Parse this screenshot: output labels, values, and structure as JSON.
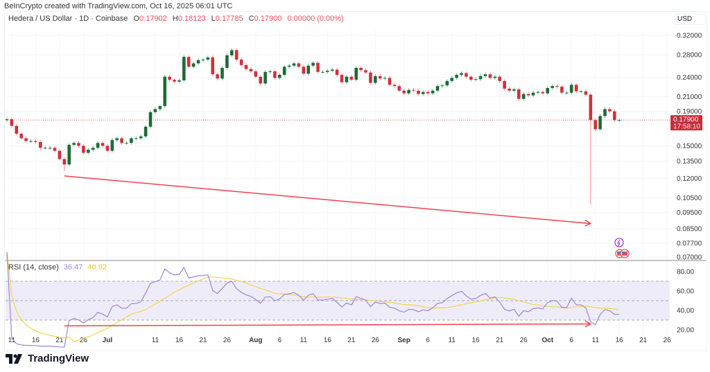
{
  "credit": "BeInCrypto created with TradingView.com, Oct 16, 2025 06:01 UTC",
  "header": {
    "symbol": "Hedera / US Dollar · 1D · Coinbase",
    "o_label": "O",
    "o": "0.17902",
    "h_label": "H",
    "h": "0.18123",
    "l_label": "L",
    "l": "0.17785",
    "c_label": "C",
    "c": "0.17900",
    "change": "0.00000 (0.00%)"
  },
  "currency": "USD",
  "rsi_legend": {
    "label": "RSI (14, close)",
    "rsi": "36.47",
    "ma": "40.92"
  },
  "price_tag": {
    "price": "0.17900",
    "countdown": "17:58:10"
  },
  "logo": "TradingView",
  "colors": {
    "up": "#1e6b34",
    "up_wick": "#4db89a",
    "down": "#d0313d",
    "down_wick": "#f08a93",
    "rsi": "#9b87d8",
    "rsi_ma": "#f5d547",
    "rsi_band": "#efecfa",
    "divergence": "#f0404f",
    "price_line": "#e8505b"
  },
  "chart_data": [
    {
      "type": "candlestick",
      "y_scale": "log",
      "ylim": [
        0.07,
        0.33
      ],
      "first_date": "2025-06-10",
      "open_first": 0.179,
      "closes": [
        0.18,
        0.172,
        0.163,
        0.158,
        0.155,
        0.155,
        0.154,
        0.148,
        0.148,
        0.148,
        0.145,
        0.137,
        0.132,
        0.151,
        0.153,
        0.15,
        0.143,
        0.146,
        0.148,
        0.153,
        0.15,
        0.145,
        0.156,
        0.158,
        0.153,
        0.153,
        0.158,
        0.158,
        0.16,
        0.171,
        0.189,
        0.193,
        0.197,
        0.241,
        0.236,
        0.233,
        0.235,
        0.276,
        0.258,
        0.264,
        0.27,
        0.271,
        0.275,
        0.245,
        0.238,
        0.256,
        0.279,
        0.289,
        0.271,
        0.261,
        0.254,
        0.25,
        0.241,
        0.23,
        0.249,
        0.25,
        0.239,
        0.244,
        0.258,
        0.26,
        0.264,
        0.258,
        0.246,
        0.26,
        0.265,
        0.249,
        0.249,
        0.251,
        0.253,
        0.244,
        0.232,
        0.241,
        0.236,
        0.256,
        0.252,
        0.248,
        0.231,
        0.242,
        0.238,
        0.239,
        0.228,
        0.226,
        0.219,
        0.215,
        0.22,
        0.219,
        0.214,
        0.217,
        0.215,
        0.219,
        0.226,
        0.227,
        0.234,
        0.239,
        0.244,
        0.247,
        0.241,
        0.236,
        0.237,
        0.242,
        0.245,
        0.239,
        0.241,
        0.234,
        0.222,
        0.219,
        0.221,
        0.207,
        0.214,
        0.212,
        0.216,
        0.217,
        0.215,
        0.223,
        0.226,
        0.225,
        0.216,
        0.216,
        0.228,
        0.218,
        0.218,
        0.213,
        0.179,
        0.168,
        0.184,
        0.193,
        0.19,
        0.179,
        0.179
      ],
      "notable_lows": [
        {
          "date": "2025-06-22",
          "low": 0.126
        },
        {
          "date": "2025-10-10",
          "low": 0.1
        }
      ],
      "last_price": 0.179,
      "y_ticks": [
        "0.32000",
        "0.28000",
        "0.24000",
        "0.21000",
        "0.19000",
        "0.15000",
        "0.13500",
        "0.12000",
        "0.10500",
        "0.09500",
        "0.08500",
        "0.07700",
        "0.07000"
      ],
      "divergence_line": {
        "from": {
          "date": "2025-06-22",
          "price": 0.122
        },
        "to": {
          "date": "2025-10-10",
          "price": 0.088
        }
      }
    },
    {
      "type": "line",
      "period": 14,
      "ma_period": 14,
      "ylim": [
        15,
        87
      ],
      "band": [
        30,
        70
      ],
      "midline": 50,
      "y_ticks": [
        "80.00",
        "60.00",
        "40.00",
        "20.00"
      ],
      "divergence_line": {
        "from": {
          "date": "2025-06-22",
          "value": 24
        },
        "to": {
          "date": "2025-10-10",
          "value": 26
        }
      }
    }
  ],
  "x_ticks": [
    {
      "label": "11",
      "date": "2025-06-11"
    },
    {
      "label": "16",
      "date": "2025-06-16"
    },
    {
      "label": "21",
      "date": "2025-06-21"
    },
    {
      "label": "26",
      "date": "2025-06-26"
    },
    {
      "label": "Jul",
      "date": "2025-07-01",
      "bold": true
    },
    {
      "label": "11",
      "date": "2025-07-11"
    },
    {
      "label": "16",
      "date": "2025-07-16"
    },
    {
      "label": "21",
      "date": "2025-07-21"
    },
    {
      "label": "26",
      "date": "2025-07-26"
    },
    {
      "label": "Aug",
      "date": "2025-08-01",
      "bold": true
    },
    {
      "label": "6",
      "date": "2025-08-06"
    },
    {
      "label": "11",
      "date": "2025-08-11"
    },
    {
      "label": "16",
      "date": "2025-08-16"
    },
    {
      "label": "21",
      "date": "2025-08-21"
    },
    {
      "label": "26",
      "date": "2025-08-26"
    },
    {
      "label": "Sep",
      "date": "2025-09-01",
      "bold": true
    },
    {
      "label": "6",
      "date": "2025-09-06"
    },
    {
      "label": "11",
      "date": "2025-09-11"
    },
    {
      "label": "16",
      "date": "2025-09-16"
    },
    {
      "label": "21",
      "date": "2025-09-21"
    },
    {
      "label": "26",
      "date": "2025-09-26"
    },
    {
      "label": "Oct",
      "date": "2025-10-01",
      "bold": true
    },
    {
      "label": "6",
      "date": "2025-10-06"
    },
    {
      "label": "11",
      "date": "2025-10-11"
    },
    {
      "label": "16",
      "date": "2025-10-16"
    },
    {
      "label": "21",
      "date": "2025-10-21"
    },
    {
      "label": "26",
      "date": "2025-10-26"
    }
  ],
  "icons": {
    "event": "lightning-icon",
    "economic": "us-flag-icon"
  }
}
